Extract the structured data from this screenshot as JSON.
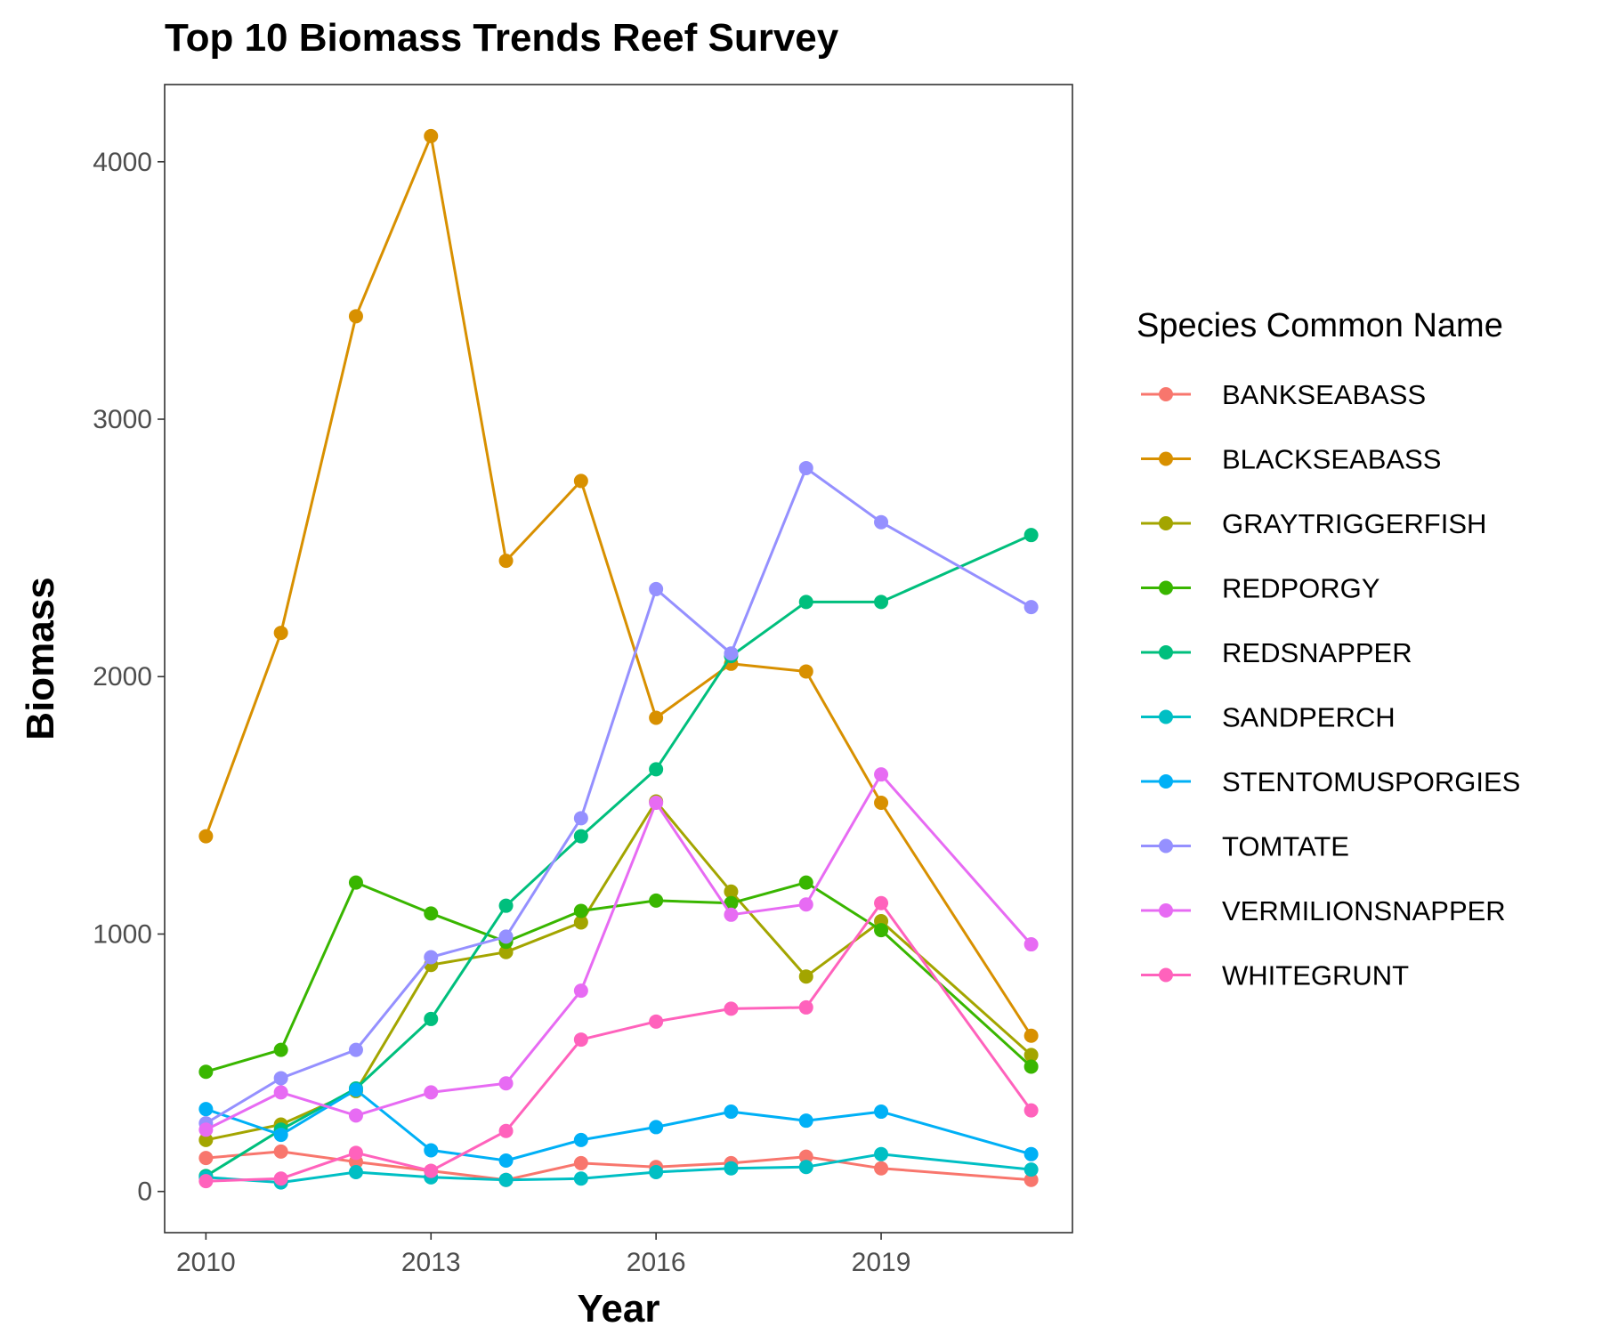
{
  "chart_data": {
    "type": "line",
    "title": "Top 10 Biomass Trends Reef Survey",
    "xlabel": "Year",
    "ylabel": "Biomass",
    "xlim": [
      2009.45,
      2021.55
    ],
    "ylim": [
      -160,
      4300
    ],
    "x_ticks": [
      2010,
      2013,
      2016,
      2019
    ],
    "y_ticks": [
      0,
      1000,
      2000,
      3000,
      4000
    ],
    "grid": false,
    "legend_title": "Species Common Name",
    "legend_position": "right",
    "x": [
      2010,
      2011,
      2012,
      2013,
      2014,
      2015,
      2016,
      2017,
      2018,
      2019,
      2021
    ],
    "series": [
      {
        "name": "BANKSEABASS",
        "color": "#F8766D",
        "values": [
          130,
          155,
          115,
          80,
          45,
          110,
          95,
          110,
          135,
          90,
          45
        ]
      },
      {
        "name": "BLACKSEABASS",
        "color": "#D89000",
        "values": [
          1380,
          2170,
          3400,
          4100,
          2450,
          2760,
          1840,
          2050,
          2020,
          1510,
          605
        ]
      },
      {
        "name": "GRAYTRIGGERFISH",
        "color": "#A3A500",
        "values": [
          200,
          260,
          390,
          880,
          930,
          1045,
          1515,
          1165,
          835,
          1050,
          530
        ]
      },
      {
        "name": "REDPORGY",
        "color": "#39B600",
        "values": [
          465,
          550,
          1200,
          1080,
          970,
          1090,
          1130,
          1120,
          1200,
          1015,
          485
        ]
      },
      {
        "name": "REDSNAPPER",
        "color": "#00BF7D",
        "values": [
          60,
          240,
          400,
          670,
          1110,
          1380,
          1640,
          2080,
          2290,
          2290,
          2550
        ]
      },
      {
        "name": "SANDPERCH",
        "color": "#00BFC4",
        "values": [
          55,
          35,
          75,
          55,
          45,
          50,
          75,
          90,
          95,
          145,
          85
        ]
      },
      {
        "name": "STENTOMUSPORGIES",
        "color": "#00B0F6",
        "values": [
          320,
          220,
          395,
          160,
          120,
          200,
          250,
          310,
          275,
          310,
          145
        ]
      },
      {
        "name": "TOMTATE",
        "color": "#9590FF",
        "values": [
          265,
          440,
          550,
          910,
          990,
          1450,
          2340,
          2090,
          2810,
          2600,
          2270
        ]
      },
      {
        "name": "VERMILIONSNAPPER",
        "color": "#E76BF3",
        "values": [
          240,
          385,
          295,
          385,
          420,
          780,
          1510,
          1075,
          1115,
          1620,
          960
        ]
      },
      {
        "name": "WHITEGRUNT",
        "color": "#FF62BC",
        "values": [
          40,
          50,
          150,
          80,
          235,
          590,
          660,
          710,
          715,
          1120,
          315
        ]
      }
    ]
  }
}
